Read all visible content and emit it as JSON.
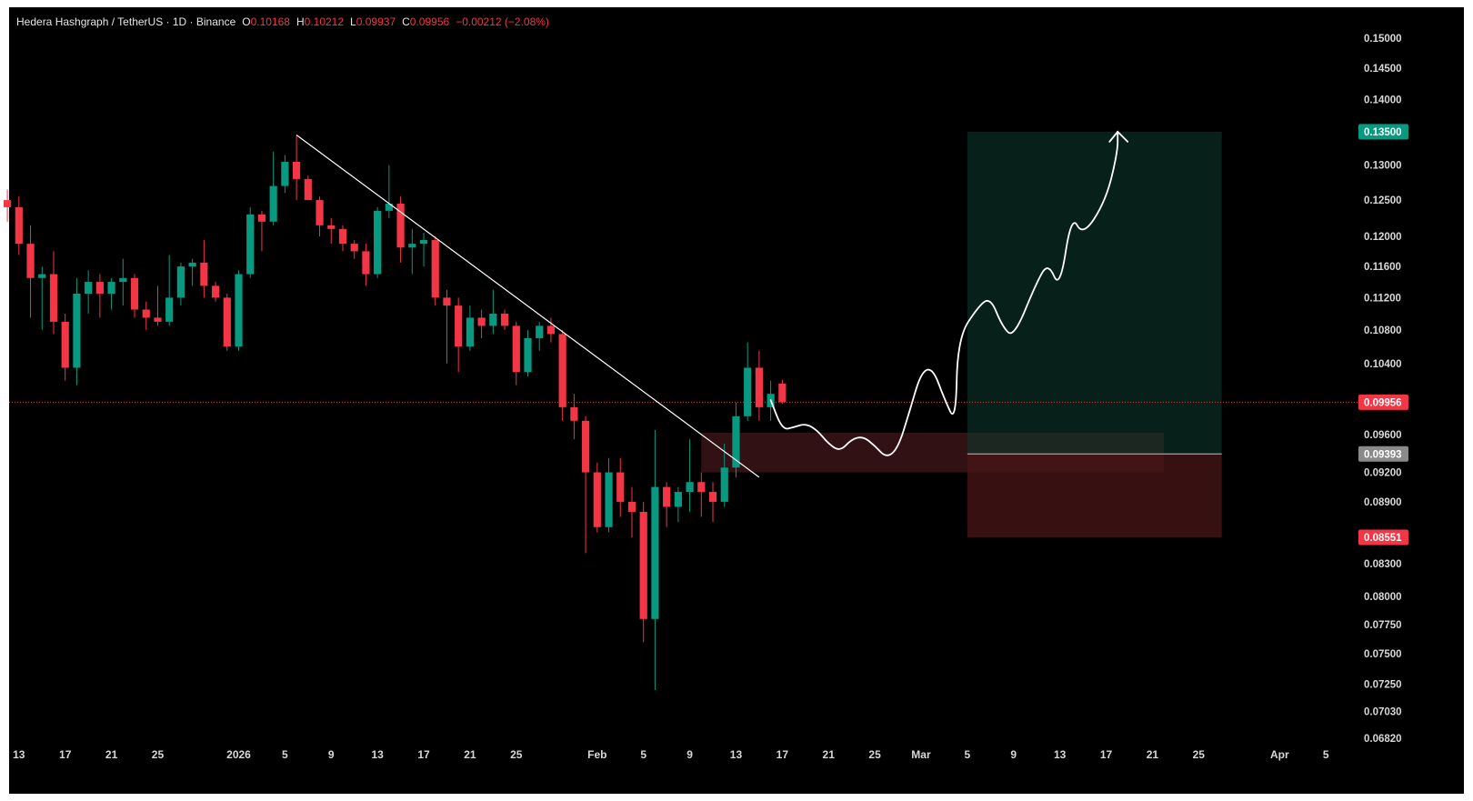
{
  "header": {
    "symbol": "Hedera Hashgraph / TetherUS · 1D · Binance",
    "open_label": "O",
    "open": "0.10168",
    "high_label": "H",
    "high": "0.10212",
    "low_label": "L",
    "low": "0.09937",
    "close_label": "C",
    "close": "0.09956",
    "change": "−0.00212 (−2.08%)"
  },
  "colors": {
    "up": "#089981",
    "down": "#f23645",
    "background": "#000000",
    "target_zone": "#0d3b2e",
    "stop_zone": "#4a1518",
    "demand_zone": "#3a1416"
  },
  "chart_data": {
    "type": "candlestick",
    "title": "",
    "xlabel": "",
    "ylabel": "",
    "ylim": [
      0.0682,
      0.152
    ],
    "y_scale": "log",
    "grid": false,
    "y_ticks": [
      "0.15000",
      "0.14500",
      "0.14000",
      "0.13000",
      "0.12500",
      "0.12000",
      "0.11600",
      "0.11200",
      "0.10800",
      "0.10400",
      "0.09600",
      "0.09200",
      "0.08900",
      "0.08300",
      "0.08000",
      "0.07750",
      "0.07500",
      "0.07250",
      "0.07030",
      "0.06820"
    ],
    "x_ticks": [
      {
        "label": "13",
        "date": "2025-12-13"
      },
      {
        "label": "17",
        "date": "2025-12-17"
      },
      {
        "label": "21",
        "date": "2025-12-21"
      },
      {
        "label": "25",
        "date": "2025-12-25"
      },
      {
        "label": "2026",
        "date": "2026-01-01"
      },
      {
        "label": "5",
        "date": "2026-01-05"
      },
      {
        "label": "9",
        "date": "2026-01-09"
      },
      {
        "label": "13",
        "date": "2026-01-13"
      },
      {
        "label": "17",
        "date": "2026-01-17"
      },
      {
        "label": "21",
        "date": "2026-01-21"
      },
      {
        "label": "25",
        "date": "2026-01-25"
      },
      {
        "label": "Feb",
        "date": "2026-02-01"
      },
      {
        "label": "5",
        "date": "2026-02-05"
      },
      {
        "label": "9",
        "date": "2026-02-09"
      },
      {
        "label": "13",
        "date": "2026-02-13"
      },
      {
        "label": "17",
        "date": "2026-02-17"
      },
      {
        "label": "21",
        "date": "2026-02-21"
      },
      {
        "label": "25",
        "date": "2026-02-25"
      },
      {
        "label": "Mar",
        "date": "2026-03-01"
      },
      {
        "label": "5",
        "date": "2026-03-05"
      },
      {
        "label": "9",
        "date": "2026-03-09"
      },
      {
        "label": "13",
        "date": "2026-03-13"
      },
      {
        "label": "17",
        "date": "2026-03-17"
      },
      {
        "label": "21",
        "date": "2026-03-21"
      },
      {
        "label": "25",
        "date": "2026-03-25"
      },
      {
        "label": "Apr",
        "date": "2026-04-01"
      },
      {
        "label": "5",
        "date": "2026-04-05"
      }
    ],
    "candles": [
      {
        "date": "2025-12-11",
        "o": 0.1305,
        "h": 0.131,
        "l": 0.124,
        "c": 0.125
      },
      {
        "date": "2025-12-12",
        "o": 0.125,
        "h": 0.1265,
        "l": 0.122,
        "c": 0.124
      },
      {
        "date": "2025-12-13",
        "o": 0.124,
        "h": 0.1255,
        "l": 0.1175,
        "c": 0.119
      },
      {
        "date": "2025-12-14",
        "o": 0.119,
        "h": 0.1215,
        "l": 0.1095,
        "c": 0.1145
      },
      {
        "date": "2025-12-15",
        "o": 0.1145,
        "h": 0.116,
        "l": 0.108,
        "c": 0.115
      },
      {
        "date": "2025-12-16",
        "o": 0.115,
        "h": 0.118,
        "l": 0.1075,
        "c": 0.109
      },
      {
        "date": "2025-12-17",
        "o": 0.109,
        "h": 0.11,
        "l": 0.102,
        "c": 0.1035
      },
      {
        "date": "2025-12-18",
        "o": 0.1035,
        "h": 0.1145,
        "l": 0.1015,
        "c": 0.1125
      },
      {
        "date": "2025-12-19",
        "o": 0.1125,
        "h": 0.1155,
        "l": 0.11,
        "c": 0.114
      },
      {
        "date": "2025-12-20",
        "o": 0.114,
        "h": 0.115,
        "l": 0.1095,
        "c": 0.1125
      },
      {
        "date": "2025-12-21",
        "o": 0.1125,
        "h": 0.1145,
        "l": 0.1105,
        "c": 0.114
      },
      {
        "date": "2025-12-22",
        "o": 0.114,
        "h": 0.117,
        "l": 0.111,
        "c": 0.1145
      },
      {
        "date": "2025-12-23",
        "o": 0.1145,
        "h": 0.115,
        "l": 0.1095,
        "c": 0.1105
      },
      {
        "date": "2025-12-24",
        "o": 0.1105,
        "h": 0.1115,
        "l": 0.108,
        "c": 0.1095
      },
      {
        "date": "2025-12-25",
        "o": 0.1095,
        "h": 0.1135,
        "l": 0.1085,
        "c": 0.109
      },
      {
        "date": "2025-12-26",
        "o": 0.109,
        "h": 0.1175,
        "l": 0.1085,
        "c": 0.112
      },
      {
        "date": "2025-12-27",
        "o": 0.112,
        "h": 0.1165,
        "l": 0.111,
        "c": 0.116
      },
      {
        "date": "2025-12-28",
        "o": 0.116,
        "h": 0.117,
        "l": 0.1135,
        "c": 0.1165
      },
      {
        "date": "2025-12-29",
        "o": 0.1165,
        "h": 0.1195,
        "l": 0.112,
        "c": 0.1135
      },
      {
        "date": "2025-12-30",
        "o": 0.1135,
        "h": 0.114,
        "l": 0.1115,
        "c": 0.112
      },
      {
        "date": "2025-12-31",
        "o": 0.112,
        "h": 0.1125,
        "l": 0.1055,
        "c": 0.106
      },
      {
        "date": "2026-01-01",
        "o": 0.106,
        "h": 0.1155,
        "l": 0.1055,
        "c": 0.115
      },
      {
        "date": "2026-01-02",
        "o": 0.115,
        "h": 0.124,
        "l": 0.1145,
        "c": 0.123
      },
      {
        "date": "2026-01-03",
        "o": 0.123,
        "h": 0.1235,
        "l": 0.118,
        "c": 0.122
      },
      {
        "date": "2026-01-04",
        "o": 0.122,
        "h": 0.132,
        "l": 0.1215,
        "c": 0.127
      },
      {
        "date": "2026-01-05",
        "o": 0.127,
        "h": 0.1315,
        "l": 0.126,
        "c": 0.1305
      },
      {
        "date": "2026-01-06",
        "o": 0.1305,
        "h": 0.1345,
        "l": 0.125,
        "c": 0.128
      },
      {
        "date": "2026-01-07",
        "o": 0.128,
        "h": 0.1285,
        "l": 0.1255,
        "c": 0.125
      },
      {
        "date": "2026-01-08",
        "o": 0.125,
        "h": 0.1255,
        "l": 0.12,
        "c": 0.1215
      },
      {
        "date": "2026-01-09",
        "o": 0.1215,
        "h": 0.1225,
        "l": 0.119,
        "c": 0.121
      },
      {
        "date": "2026-01-10",
        "o": 0.121,
        "h": 0.1215,
        "l": 0.118,
        "c": 0.119
      },
      {
        "date": "2026-01-11",
        "o": 0.119,
        "h": 0.1195,
        "l": 0.117,
        "c": 0.118
      },
      {
        "date": "2026-01-12",
        "o": 0.118,
        "h": 0.119,
        "l": 0.1135,
        "c": 0.115
      },
      {
        "date": "2026-01-13",
        "o": 0.115,
        "h": 0.124,
        "l": 0.1145,
        "c": 0.1235
      },
      {
        "date": "2026-01-14",
        "o": 0.1235,
        "h": 0.13,
        "l": 0.1225,
        "c": 0.1245
      },
      {
        "date": "2026-01-15",
        "o": 0.1245,
        "h": 0.1255,
        "l": 0.1165,
        "c": 0.1185
      },
      {
        "date": "2026-01-16",
        "o": 0.1185,
        "h": 0.121,
        "l": 0.115,
        "c": 0.119
      },
      {
        "date": "2026-01-17",
        "o": 0.119,
        "h": 0.1205,
        "l": 0.116,
        "c": 0.1195
      },
      {
        "date": "2026-01-18",
        "o": 0.1195,
        "h": 0.12,
        "l": 0.111,
        "c": 0.112
      },
      {
        "date": "2026-01-19",
        "o": 0.112,
        "h": 0.113,
        "l": 0.104,
        "c": 0.111
      },
      {
        "date": "2026-01-20",
        "o": 0.111,
        "h": 0.112,
        "l": 0.103,
        "c": 0.106
      },
      {
        "date": "2026-01-21",
        "o": 0.106,
        "h": 0.111,
        "l": 0.1055,
        "c": 0.1095
      },
      {
        "date": "2026-01-22",
        "o": 0.1095,
        "h": 0.1105,
        "l": 0.107,
        "c": 0.1085
      },
      {
        "date": "2026-01-23",
        "o": 0.1085,
        "h": 0.113,
        "l": 0.1075,
        "c": 0.11
      },
      {
        "date": "2026-01-24",
        "o": 0.11,
        "h": 0.1105,
        "l": 0.108,
        "c": 0.1085
      },
      {
        "date": "2026-01-25",
        "o": 0.1085,
        "h": 0.109,
        "l": 0.1015,
        "c": 0.103
      },
      {
        "date": "2026-01-26",
        "o": 0.103,
        "h": 0.108,
        "l": 0.1025,
        "c": 0.107
      },
      {
        "date": "2026-01-27",
        "o": 0.107,
        "h": 0.109,
        "l": 0.1055,
        "c": 0.1085
      },
      {
        "date": "2026-01-28",
        "o": 0.1085,
        "h": 0.1095,
        "l": 0.1065,
        "c": 0.1075
      },
      {
        "date": "2026-01-29",
        "o": 0.1075,
        "h": 0.108,
        "l": 0.0975,
        "c": 0.099
      },
      {
        "date": "2026-01-30",
        "o": 0.099,
        "h": 0.1005,
        "l": 0.0955,
        "c": 0.0975
      },
      {
        "date": "2026-01-31",
        "o": 0.0975,
        "h": 0.098,
        "l": 0.084,
        "c": 0.092
      },
      {
        "date": "2026-02-01",
        "o": 0.092,
        "h": 0.093,
        "l": 0.086,
        "c": 0.0865
      },
      {
        "date": "2026-02-02",
        "o": 0.0865,
        "h": 0.0935,
        "l": 0.086,
        "c": 0.092
      },
      {
        "date": "2026-02-03",
        "o": 0.092,
        "h": 0.0935,
        "l": 0.0875,
        "c": 0.089
      },
      {
        "date": "2026-02-04",
        "o": 0.089,
        "h": 0.0905,
        "l": 0.0855,
        "c": 0.088
      },
      {
        "date": "2026-02-05",
        "o": 0.088,
        "h": 0.089,
        "l": 0.076,
        "c": 0.078
      },
      {
        "date": "2026-02-06",
        "o": 0.078,
        "h": 0.0965,
        "l": 0.072,
        "c": 0.0905
      },
      {
        "date": "2026-02-07",
        "o": 0.0905,
        "h": 0.091,
        "l": 0.0865,
        "c": 0.0885
      },
      {
        "date": "2026-02-08",
        "o": 0.0885,
        "h": 0.0905,
        "l": 0.087,
        "c": 0.09
      },
      {
        "date": "2026-02-09",
        "o": 0.09,
        "h": 0.0955,
        "l": 0.088,
        "c": 0.091
      },
      {
        "date": "2026-02-10",
        "o": 0.091,
        "h": 0.092,
        "l": 0.0875,
        "c": 0.09
      },
      {
        "date": "2026-02-11",
        "o": 0.09,
        "h": 0.091,
        "l": 0.087,
        "c": 0.089
      },
      {
        "date": "2026-02-12",
        "o": 0.089,
        "h": 0.095,
        "l": 0.0885,
        "c": 0.0925
      },
      {
        "date": "2026-02-13",
        "o": 0.0925,
        "h": 0.0995,
        "l": 0.0915,
        "c": 0.098
      },
      {
        "date": "2026-02-14",
        "o": 0.098,
        "h": 0.1065,
        "l": 0.0975,
        "c": 0.1035
      },
      {
        "date": "2026-02-15",
        "o": 0.1035,
        "h": 0.1055,
        "l": 0.0975,
        "c": 0.099
      },
      {
        "date": "2026-02-16",
        "o": 0.099,
        "h": 0.102,
        "l": 0.0975,
        "c": 0.1005
      },
      {
        "date": "2026-02-17",
        "o": 0.10168,
        "h": 0.10212,
        "l": 0.09937,
        "c": 0.09956
      }
    ],
    "annotations": {
      "trendline": {
        "from": {
          "date": "2026-01-06",
          "price": 0.1345
        },
        "to": {
          "date": "2026-02-15",
          "price": 0.0915
        }
      },
      "demand_zone": {
        "from_date": "2026-02-10",
        "to_date": "2026-03-22",
        "top": 0.0962,
        "bottom": 0.092
      },
      "long_position": {
        "from_date": "2026-03-05",
        "to_date": "2026-03-27",
        "entry": 0.09393,
        "target": 0.135,
        "stop": 0.08551
      },
      "projection_path": [
        {
          "date": "2026-02-16",
          "price": 0.0998
        },
        {
          "date": "2026-02-17",
          "price": 0.0965
        },
        {
          "date": "2026-02-18",
          "price": 0.0968
        },
        {
          "date": "2026-02-19",
          "price": 0.0972
        },
        {
          "date": "2026-02-20",
          "price": 0.0965
        },
        {
          "date": "2026-02-21",
          "price": 0.095
        },
        {
          "date": "2026-02-22",
          "price": 0.0942
        },
        {
          "date": "2026-02-23",
          "price": 0.0955
        },
        {
          "date": "2026-02-24",
          "price": 0.0958
        },
        {
          "date": "2026-02-25",
          "price": 0.0948
        },
        {
          "date": "2026-02-26",
          "price": 0.0935
        },
        {
          "date": "2026-02-27",
          "price": 0.0945
        },
        {
          "date": "2026-02-28",
          "price": 0.0985
        },
        {
          "date": "2026-03-01",
          "price": 0.103
        },
        {
          "date": "2026-03-02",
          "price": 0.1035
        },
        {
          "date": "2026-03-03",
          "price": 0.1
        },
        {
          "date": "2026-03-04",
          "price": 0.0972
        },
        {
          "date": "2026-03-04",
          "price": 0.107
        },
        {
          "date": "2026-03-06",
          "price": 0.111
        },
        {
          "date": "2026-03-07",
          "price": 0.112
        },
        {
          "date": "2026-03-08",
          "price": 0.1085
        },
        {
          "date": "2026-03-09",
          "price": 0.107
        },
        {
          "date": "2026-03-11",
          "price": 0.114
        },
        {
          "date": "2026-03-12",
          "price": 0.1165
        },
        {
          "date": "2026-03-13",
          "price": 0.113
        },
        {
          "date": "2026-03-14",
          "price": 0.123
        },
        {
          "date": "2026-03-15",
          "price": 0.12
        },
        {
          "date": "2026-03-17",
          "price": 0.125
        },
        {
          "date": "2026-03-18",
          "price": 0.132
        },
        {
          "date": "2026-03-18",
          "price": 0.135
        }
      ]
    },
    "price_labels": {
      "target": "0.13500",
      "current": "0.09956",
      "entry": "0.09393",
      "stop": "0.08551"
    }
  }
}
